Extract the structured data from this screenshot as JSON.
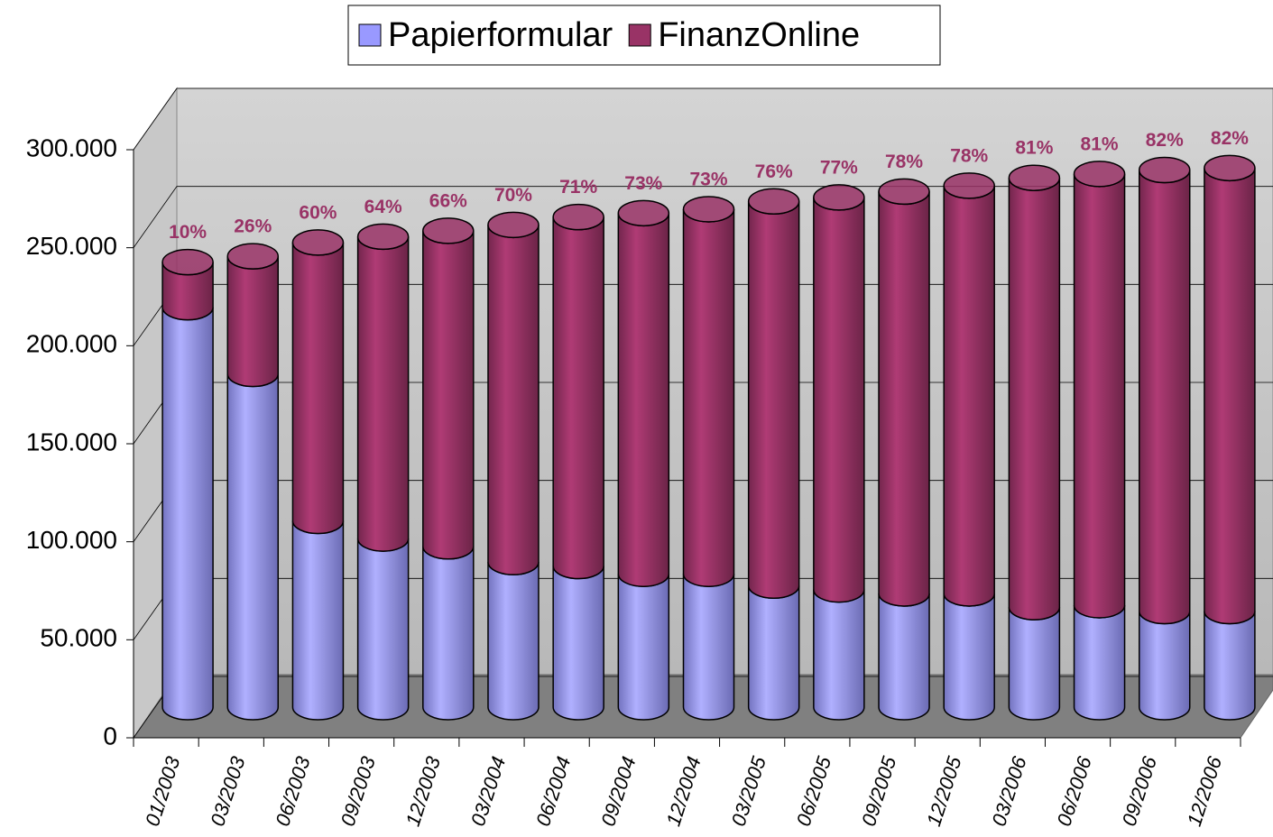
{
  "chart_data": {
    "type": "bar3d-stacked",
    "categories": [
      "01/2003",
      "03/2003",
      "06/2003",
      "09/2003",
      "12/2003",
      "03/2004",
      "06/2004",
      "09/2004",
      "12/2004",
      "03/2005",
      "06/2005",
      "09/2005",
      "12/2005",
      "03/2006",
      "06/2006",
      "09/2006",
      "12/2006"
    ],
    "series": [
      {
        "name": "Papierformular",
        "color": "#9999ff",
        "values": [
          204000,
          170000,
          95000,
          86000,
          82000,
          74000,
          72000,
          68000,
          68000,
          62000,
          60000,
          58000,
          58000,
          51000,
          52000,
          49000,
          49000
        ]
      },
      {
        "name": "FinanzOnline",
        "color": "#993366",
        "values": [
          23000,
          60000,
          142000,
          154000,
          161000,
          172000,
          178000,
          184000,
          186000,
          196000,
          200000,
          205000,
          208000,
          219000,
          220000,
          225000,
          226000
        ]
      }
    ],
    "share_labels": [
      "10%",
      "26%",
      "60%",
      "64%",
      "66%",
      "70%",
      "71%",
      "73%",
      "73%",
      "76%",
      "77%",
      "78%",
      "78%",
      "81%",
      "81%",
      "82%",
      "82%"
    ],
    "ylim": [
      0,
      300000
    ],
    "yticks": [
      0,
      {
        "value": 50000,
        "label": "50.000"
      },
      {
        "value": 100000,
        "label": "100.000"
      },
      {
        "value": 150000,
        "label": "150.000"
      },
      {
        "value": 200000,
        "label": "200.000"
      },
      {
        "value": 250000,
        "label": "250.000"
      },
      {
        "value": 300000,
        "label": "300.000"
      }
    ],
    "grid": true,
    "legend": "top"
  }
}
